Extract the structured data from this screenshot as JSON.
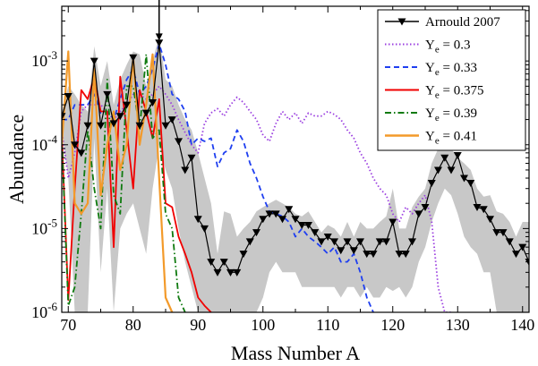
{
  "chart_data": {
    "type": "line",
    "title": "",
    "xlabel": "Mass Number A",
    "ylabel": "Abundance",
    "xlim": [
      69,
      141
    ],
    "ylim": [
      1e-06,
      0.0045
    ],
    "yscale": "log",
    "x_ticks": [
      70,
      80,
      90,
      100,
      110,
      120,
      130,
      140
    ],
    "y_ticks": [
      {
        "value": 1e-06,
        "mantissa": "10",
        "exp": "-6"
      },
      {
        "value": 1e-05,
        "mantissa": "10",
        "exp": "-5"
      },
      {
        "value": 0.0001,
        "mantissa": "10",
        "exp": "-4"
      },
      {
        "value": 0.001,
        "mantissa": "10",
        "exp": "-3"
      }
    ],
    "grid": false,
    "legend_position": "top-right",
    "band": {
      "color": "#c8c8c8",
      "x": [
        69,
        70,
        71,
        72,
        73,
        74,
        75,
        76,
        77,
        78,
        79,
        80,
        81,
        82,
        83,
        84,
        85,
        86,
        87,
        88,
        89,
        90,
        91,
        92,
        93,
        94,
        95,
        96,
        97,
        98,
        99,
        100,
        101,
        102,
        103,
        104,
        105,
        106,
        107,
        108,
        109,
        110,
        111,
        112,
        113,
        114,
        115,
        116,
        117,
        118,
        119,
        120,
        121,
        122,
        123,
        124,
        125,
        126,
        127,
        128,
        129,
        130,
        131,
        132,
        133,
        134,
        135,
        136,
        137,
        138,
        139,
        140,
        141
      ],
      "upper": [
        0.00025,
        0.0005,
        0.0004,
        0.0003,
        0.00025,
        0.0015,
        0.0005,
        0.001,
        0.0003,
        0.0006,
        0.0009,
        0.0013,
        0.0012,
        0.0005,
        0.001,
        0.002,
        0.0006,
        0.0005,
        0.0003,
        0.0002,
        0.00015,
        8e-05,
        4e-05,
        2e-05,
        5e-06,
        1.6e-05,
        1.5e-05,
        8e-06,
        1e-05,
        1.2e-05,
        1.6e-05,
        1.8e-05,
        2e-05,
        2.2e-05,
        2e-05,
        1.8e-05,
        1.5e-05,
        1.4e-05,
        1.6e-05,
        1.2e-05,
        9e-06,
        1.1e-05,
        1e-05,
        8e-06,
        1.2e-05,
        8e-06,
        1.2e-05,
        1e-05,
        1e-05,
        1.2e-05,
        1.4e-05,
        3e-05,
        1e-05,
        1e-05,
        1.8e-05,
        2.4e-05,
        3e-05,
        6e-05,
        9e-05,
        0.00011,
        9e-05,
        7e-05,
        6e-05,
        5e-05,
        3e-05,
        2.4e-05,
        2.5e-05,
        1.6e-05,
        1.5e-05,
        1.2e-05,
        8e-06,
        1.2e-05,
        1.2e-05
      ],
      "lower": [
        0.00015,
        4e-05,
        1e-06,
        1e-06,
        1e-06,
        0.00012,
        3e-06,
        3e-05,
        1e-06,
        1e-05,
        1.5e-05,
        2e-05,
        1e-05,
        5e-06,
        3e-05,
        0.0001,
        5e-05,
        3e-05,
        1e-05,
        4e-06,
        2e-06,
        1e-06,
        1e-06,
        1e-06,
        1e-06,
        1e-06,
        1e-06,
        1e-06,
        1e-06,
        1e-06,
        1e-06,
        1.5e-06,
        3e-06,
        4e-06,
        3e-06,
        3e-06,
        3e-06,
        2e-06,
        2e-06,
        2e-06,
        2e-06,
        2e-06,
        2e-06,
        1.5e-06,
        2e-06,
        2e-06,
        1.5e-06,
        2e-06,
        1.5e-06,
        1.5e-06,
        2e-06,
        1.8e-06,
        2e-06,
        1.5e-06,
        2e-06,
        4e-06,
        6e-06,
        1.2e-05,
        2e-05,
        3e-05,
        2.5e-05,
        1.5e-05,
        8e-06,
        6e-06,
        5e-06,
        3e-06,
        3e-06,
        1e-06,
        1e-06,
        1e-06,
        1e-06,
        1e-06,
        1e-06
      ]
    },
    "series": [
      {
        "name": "Arnould 2007",
        "color": "#000000",
        "dash": "",
        "width": 1.2,
        "marker": "triangle-down",
        "x": [
          69,
          70,
          71,
          72,
          73,
          74,
          75,
          76,
          77,
          78,
          79,
          80,
          81,
          82,
          83,
          84,
          85,
          86,
          87,
          88,
          89,
          90,
          91,
          92,
          93,
          94,
          95,
          96,
          97,
          98,
          99,
          100,
          101,
          102,
          103,
          104,
          105,
          106,
          107,
          108,
          109,
          110,
          111,
          112,
          113,
          114,
          115,
          116,
          117,
          118,
          119,
          120,
          121,
          122,
          123,
          124,
          125,
          126,
          127,
          128,
          129,
          130,
          131,
          132,
          133,
          134,
          135,
          136,
          137,
          138,
          139,
          140,
          141
        ],
        "y": [
          0.00022,
          0.00038,
          0.0001,
          8e-05,
          0.00017,
          0.001,
          0.00017,
          0.0004,
          0.00018,
          0.00022,
          0.0003,
          0.0011,
          0.00017,
          0.00024,
          0.00032,
          0.00165,
          0.00017,
          0.0002,
          0.00011,
          5e-05,
          7e-05,
          1.3e-05,
          1e-05,
          4e-06,
          3e-06,
          4e-06,
          3e-06,
          3e-06,
          5e-06,
          7e-06,
          9e-06,
          1.3e-05,
          1.5e-05,
          1.5e-05,
          1.3e-05,
          1.7e-05,
          1.3e-05,
          1.1e-05,
          1.1e-05,
          9e-06,
          7e-06,
          8e-06,
          7e-06,
          5.5e-06,
          7e-06,
          5.5e-06,
          7e-06,
          5e-06,
          5e-06,
          7e-06,
          7e-06,
          1.2e-05,
          5e-06,
          5e-06,
          7e-06,
          1.5e-05,
          1.8e-05,
          3.5e-05,
          5e-05,
          7e-05,
          5e-05,
          7.5e-05,
          4e-05,
          3.5e-05,
          1.8e-05,
          1.7e-05,
          1.3e-05,
          9e-06,
          9e-06,
          7e-06,
          5e-06,
          6e-06,
          4e-06
        ]
      },
      {
        "name": "Y_e = 0.3",
        "label_main": "Y",
        "label_sub": "e",
        "label_value": " = 0.3",
        "color": "#9b3fe0",
        "dash": "1.5 2.5",
        "width": 1.8,
        "x": [
          69,
          70,
          71,
          72,
          73,
          74,
          75,
          76,
          77,
          78,
          79,
          80,
          81,
          82,
          83,
          84,
          85,
          86,
          87,
          88,
          89,
          90,
          91,
          92,
          93,
          94,
          95,
          96,
          97,
          98,
          99,
          100,
          101,
          102,
          103,
          104,
          105,
          106,
          107,
          108,
          109,
          110,
          111,
          112,
          113,
          114,
          115,
          116,
          117,
          118,
          119,
          120,
          121,
          122,
          123,
          124,
          125,
          126,
          127,
          128,
          129
        ],
        "y": [
          0.00015,
          4e-05,
          8e-05,
          0.00025,
          0.0003,
          0.0003,
          0.0003,
          0.00025,
          0.0002,
          0.00025,
          0.0003,
          0.0004,
          0.0004,
          0.00035,
          0.0004,
          0.0005,
          0.0004,
          0.0003,
          0.0002,
          0.00014,
          0.0001,
          8e-05,
          0.00018,
          0.00024,
          0.00027,
          0.00022,
          0.0003,
          0.00037,
          0.00032,
          0.00025,
          0.0002,
          0.00013,
          0.00011,
          0.00018,
          0.00025,
          0.0002,
          0.00024,
          0.00018,
          0.00024,
          0.00022,
          0.00022,
          0.00025,
          0.00023,
          0.0002,
          0.00015,
          0.00012,
          8e-05,
          6e-05,
          4e-05,
          3e-05,
          2.5e-05,
          1.5e-05,
          1.2e-05,
          1.8e-05,
          1.5e-05,
          2e-05,
          2.5e-05,
          1.2e-05,
          2e-06,
          1e-06,
          1e-06
        ]
      },
      {
        "name": "Y_e = 0.33",
        "label_main": "Y",
        "label_sub": "e",
        "label_value": " = 0.33",
        "color": "#1f3ff0",
        "dash": "6 4",
        "width": 1.8,
        "x": [
          69,
          70,
          71,
          72,
          73,
          74,
          75,
          76,
          77,
          78,
          79,
          80,
          81,
          82,
          83,
          84,
          85,
          86,
          87,
          88,
          89,
          90,
          91,
          92,
          93,
          94,
          95,
          96,
          97,
          98,
          99,
          100,
          101,
          102,
          103,
          104,
          105,
          106,
          107,
          108,
          109,
          110,
          111,
          112,
          113,
          114,
          115,
          116,
          117
        ],
        "y": [
          0.0002,
          0.0002,
          0.0003,
          0.0003,
          0.0003,
          0.0004,
          0.00024,
          0.00025,
          0.0002,
          0.00035,
          0.0006,
          0.0008,
          0.0004,
          0.0005,
          0.0008,
          0.0016,
          0.0009,
          0.0004,
          0.00035,
          0.00025,
          0.0001,
          0.00012,
          0.00011,
          0.00012,
          5.5e-05,
          8e-05,
          9e-05,
          0.00015,
          0.00011,
          6e-05,
          4e-05,
          2.4e-05,
          1.6e-05,
          1.5e-05,
          1.4e-05,
          1.2e-05,
          8e-06,
          1e-05,
          8e-06,
          7e-06,
          6e-06,
          5e-06,
          6e-06,
          4e-06,
          4e-06,
          5e-06,
          3e-06,
          1.5e-06,
          1e-06
        ]
      },
      {
        "name": "Y_e = 0.375",
        "label_main": "Y",
        "label_sub": "e",
        "label_value": " = 0.375",
        "color": "#f00000",
        "dash": "",
        "width": 1.8,
        "x": [
          69,
          70,
          71,
          72,
          73,
          74,
          75,
          76,
          77,
          78,
          79,
          80,
          81,
          82,
          83,
          84,
          85,
          86,
          87,
          88,
          89,
          90,
          91,
          92
        ],
        "y": [
          0.00014,
          1.4e-06,
          3e-05,
          0.00045,
          0.00035,
          0.00065,
          0.00025,
          0.00025,
          6e-06,
          0.00065,
          0.00015,
          3e-05,
          0.00045,
          0.00025,
          0.00012,
          0.00035,
          2e-05,
          1.8e-05,
          8e-06,
          5e-06,
          3e-06,
          1.5e-06,
          1.2e-06,
          1e-06
        ]
      },
      {
        "name": "Y_e = 0.39",
        "label_main": "Y",
        "label_sub": "e",
        "label_value": " = 0.39",
        "color": "#0f7a0f",
        "dash": "7 3 1.5 3",
        "width": 1.8,
        "x": [
          69,
          70,
          71,
          72,
          73,
          74,
          75,
          76,
          77,
          78,
          79,
          80,
          81,
          82,
          83,
          84,
          85,
          86,
          87,
          88
        ],
        "y": [
          0.00012,
          1.2e-06,
          2e-06,
          1.5e-05,
          0.00015,
          3e-05,
          1e-05,
          0.0006,
          2.5e-05,
          1.5e-05,
          0.0005,
          0.0005,
          0.00015,
          0.0012,
          0.00012,
          0.00015,
          1.5e-05,
          1e-05,
          1.5e-06,
          1e-06
        ]
      },
      {
        "name": "Y_e = 0.41",
        "label_main": "Y",
        "label_sub": "e",
        "label_value": " = 0.41",
        "color": "#f39a2a",
        "dash": "",
        "width": 2.2,
        "x": [
          69,
          70,
          71,
          72,
          73,
          74,
          75,
          76,
          77,
          78,
          79,
          80,
          81,
          82,
          83,
          84,
          85,
          86
        ],
        "y": [
          0.0001,
          0.0013,
          2e-05,
          1.5e-05,
          2e-05,
          0.0008,
          2.5e-05,
          0.0001,
          0.00025,
          5e-05,
          0.0001,
          0.0011,
          0.0001,
          0.0003,
          0.0012,
          4e-05,
          1.5e-06,
          1e-06
        ]
      }
    ],
    "annotation": {
      "type": "arrow-down",
      "x": 84,
      "y": 0.00175,
      "label": ""
    }
  }
}
